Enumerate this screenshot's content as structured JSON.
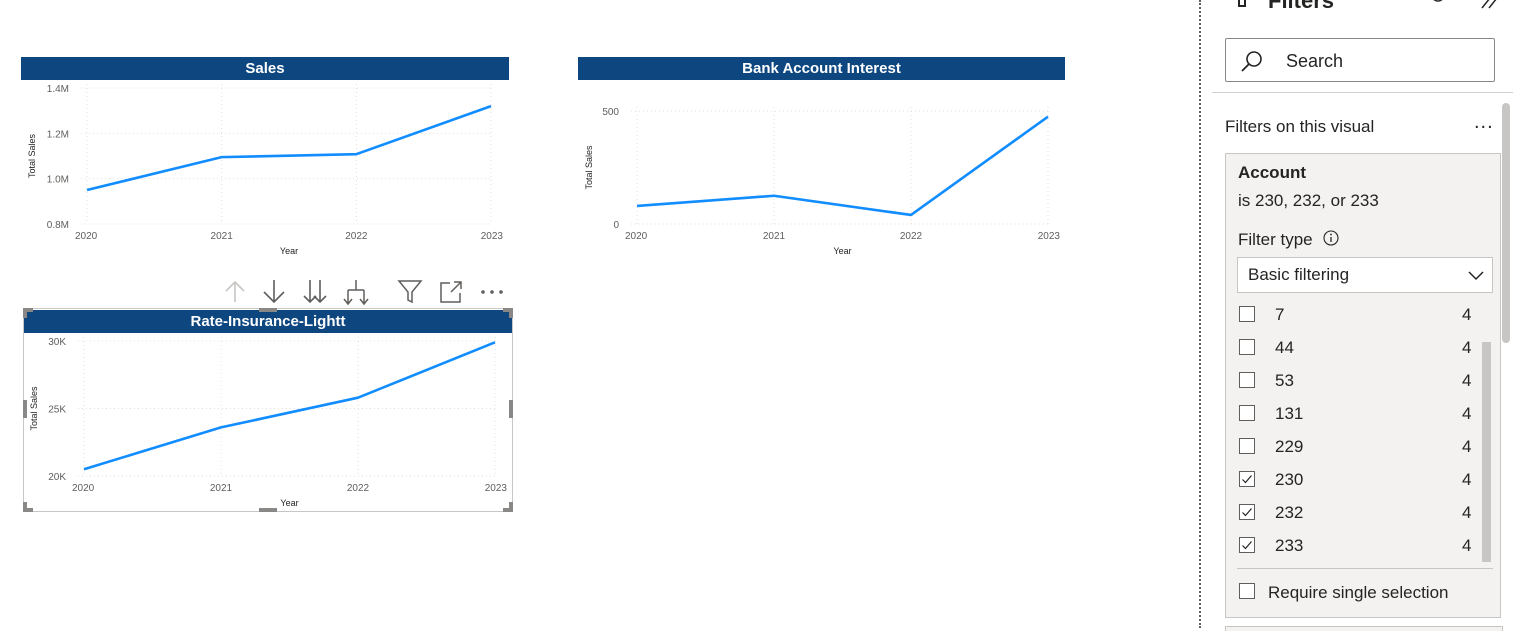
{
  "charts": {
    "sales": {
      "title": "Sales",
      "xlabel": "Year",
      "ylabel": "Total Sales",
      "yticks": [
        "1.4M",
        "1.2M",
        "1.0M",
        "0.8M"
      ],
      "xticks": [
        "2020",
        "2021",
        "2022",
        "2023"
      ]
    },
    "bank": {
      "title": "Bank Account Interest",
      "xlabel": "Year",
      "ylabel": "Total Sales",
      "yticks": [
        "500",
        "0"
      ],
      "xticks": [
        "2020",
        "2021",
        "2022",
        "2023"
      ]
    },
    "rate": {
      "title": "Rate-Insurance-Lightt",
      "xlabel": "Year",
      "ylabel": "Total Sales",
      "yticks": [
        "30K",
        "25K",
        "20K"
      ],
      "xticks": [
        "2020",
        "2021",
        "2022",
        "2023"
      ]
    }
  },
  "chart_data": [
    {
      "type": "line",
      "title": "Sales",
      "xlabel": "Year",
      "ylabel": "Total Sales",
      "x": [
        2020,
        2021,
        2022,
        2023
      ],
      "values": [
        950000,
        1095000,
        1108000,
        1320000
      ],
      "ylim": [
        800000,
        1400000
      ],
      "yticks": [
        800000,
        1000000,
        1200000,
        1400000
      ],
      "grid": true,
      "color": "#118dff"
    },
    {
      "type": "line",
      "title": "Bank Account Interest",
      "xlabel": "Year",
      "ylabel": "Total Sales",
      "x": [
        2020,
        2021,
        2022,
        2023
      ],
      "values": [
        80,
        125,
        40,
        475
      ],
      "ylim": [
        0,
        500
      ],
      "yticks": [
        0,
        500
      ],
      "grid": true,
      "color": "#118dff"
    },
    {
      "type": "line",
      "title": "Rate-Insurance-Lightt",
      "xlabel": "Year",
      "ylabel": "Total Sales",
      "x": [
        2020,
        2021,
        2022,
        2023
      ],
      "values": [
        20500,
        23600,
        25800,
        29900
      ],
      "ylim": [
        20000,
        30000
      ],
      "yticks": [
        20000,
        25000,
        30000
      ],
      "grid": true,
      "color": "#118dff"
    }
  ],
  "visual_header": {
    "icons": [
      "arrow-up-icon",
      "arrow-down-icon",
      "double-arrow-down-icon",
      "expand-hierarchy-icon",
      "filter-icon",
      "focus-mode-icon",
      "more-options-icon"
    ]
  },
  "filters": {
    "title": "Filters",
    "search_placeholder": "Search",
    "section_label": "Filters on this visual",
    "section_more": "...",
    "card": {
      "name": "Account",
      "condition": "is 230, 232, or 233",
      "filter_type_label": "Filter type",
      "filter_type_value": "Basic filtering",
      "values": [
        {
          "label": "7",
          "count": "4",
          "checked": false
        },
        {
          "label": "44",
          "count": "4",
          "checked": false
        },
        {
          "label": "53",
          "count": "4",
          "checked": false
        },
        {
          "label": "131",
          "count": "4",
          "checked": false
        },
        {
          "label": "229",
          "count": "4",
          "checked": false
        },
        {
          "label": "230",
          "count": "4",
          "checked": true
        },
        {
          "label": "232",
          "count": "4",
          "checked": true
        },
        {
          "label": "233",
          "count": "4",
          "checked": true
        }
      ],
      "require_single_label": "Require single selection"
    }
  },
  "colors": {
    "title_bar": "#0e4780",
    "line": "#118dff"
  }
}
